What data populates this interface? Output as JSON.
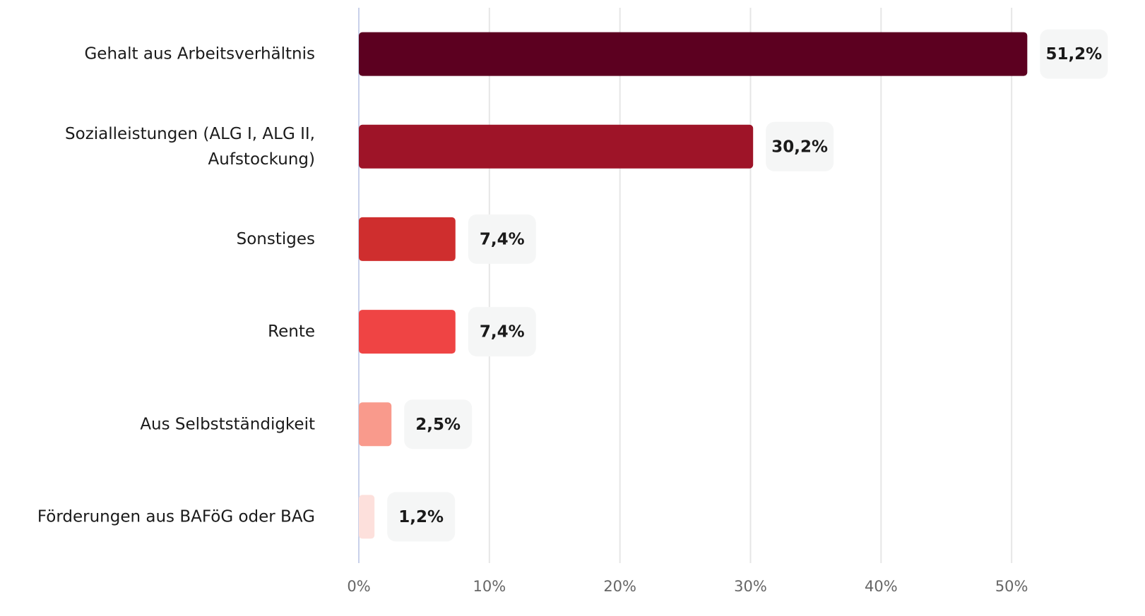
{
  "chart_data": {
    "type": "bar",
    "orientation": "horizontal",
    "categories": [
      "Gehalt aus Arbeitsverhältnis",
      "Sozialleistungen (ALG I, ALG II, Aufstockung)",
      "Sonstiges",
      "Rente",
      "Aus Selbstständigkeit",
      "Förderungen aus BAFöG oder BAG"
    ],
    "values": [
      51.2,
      30.2,
      7.4,
      7.4,
      2.5,
      1.2
    ],
    "value_labels": [
      "51,2%",
      "30,2%",
      "7,4%",
      "7,4%",
      "2,5%",
      "1,2%"
    ],
    "colors": [
      "#5c0020",
      "#9e1428",
      "#cf2e2e",
      "#ef4444",
      "#f99a8c",
      "#fde0dc"
    ],
    "xlim": [
      0,
      60
    ],
    "xticks": [
      {
        "value": 0,
        "label": "0%"
      },
      {
        "value": 10,
        "label": "10%"
      },
      {
        "value": 20,
        "label": "20%"
      },
      {
        "value": 30,
        "label": "30%"
      },
      {
        "value": 40,
        "label": "40%"
      },
      {
        "value": 50,
        "label": "50%"
      }
    ],
    "grid": true
  }
}
